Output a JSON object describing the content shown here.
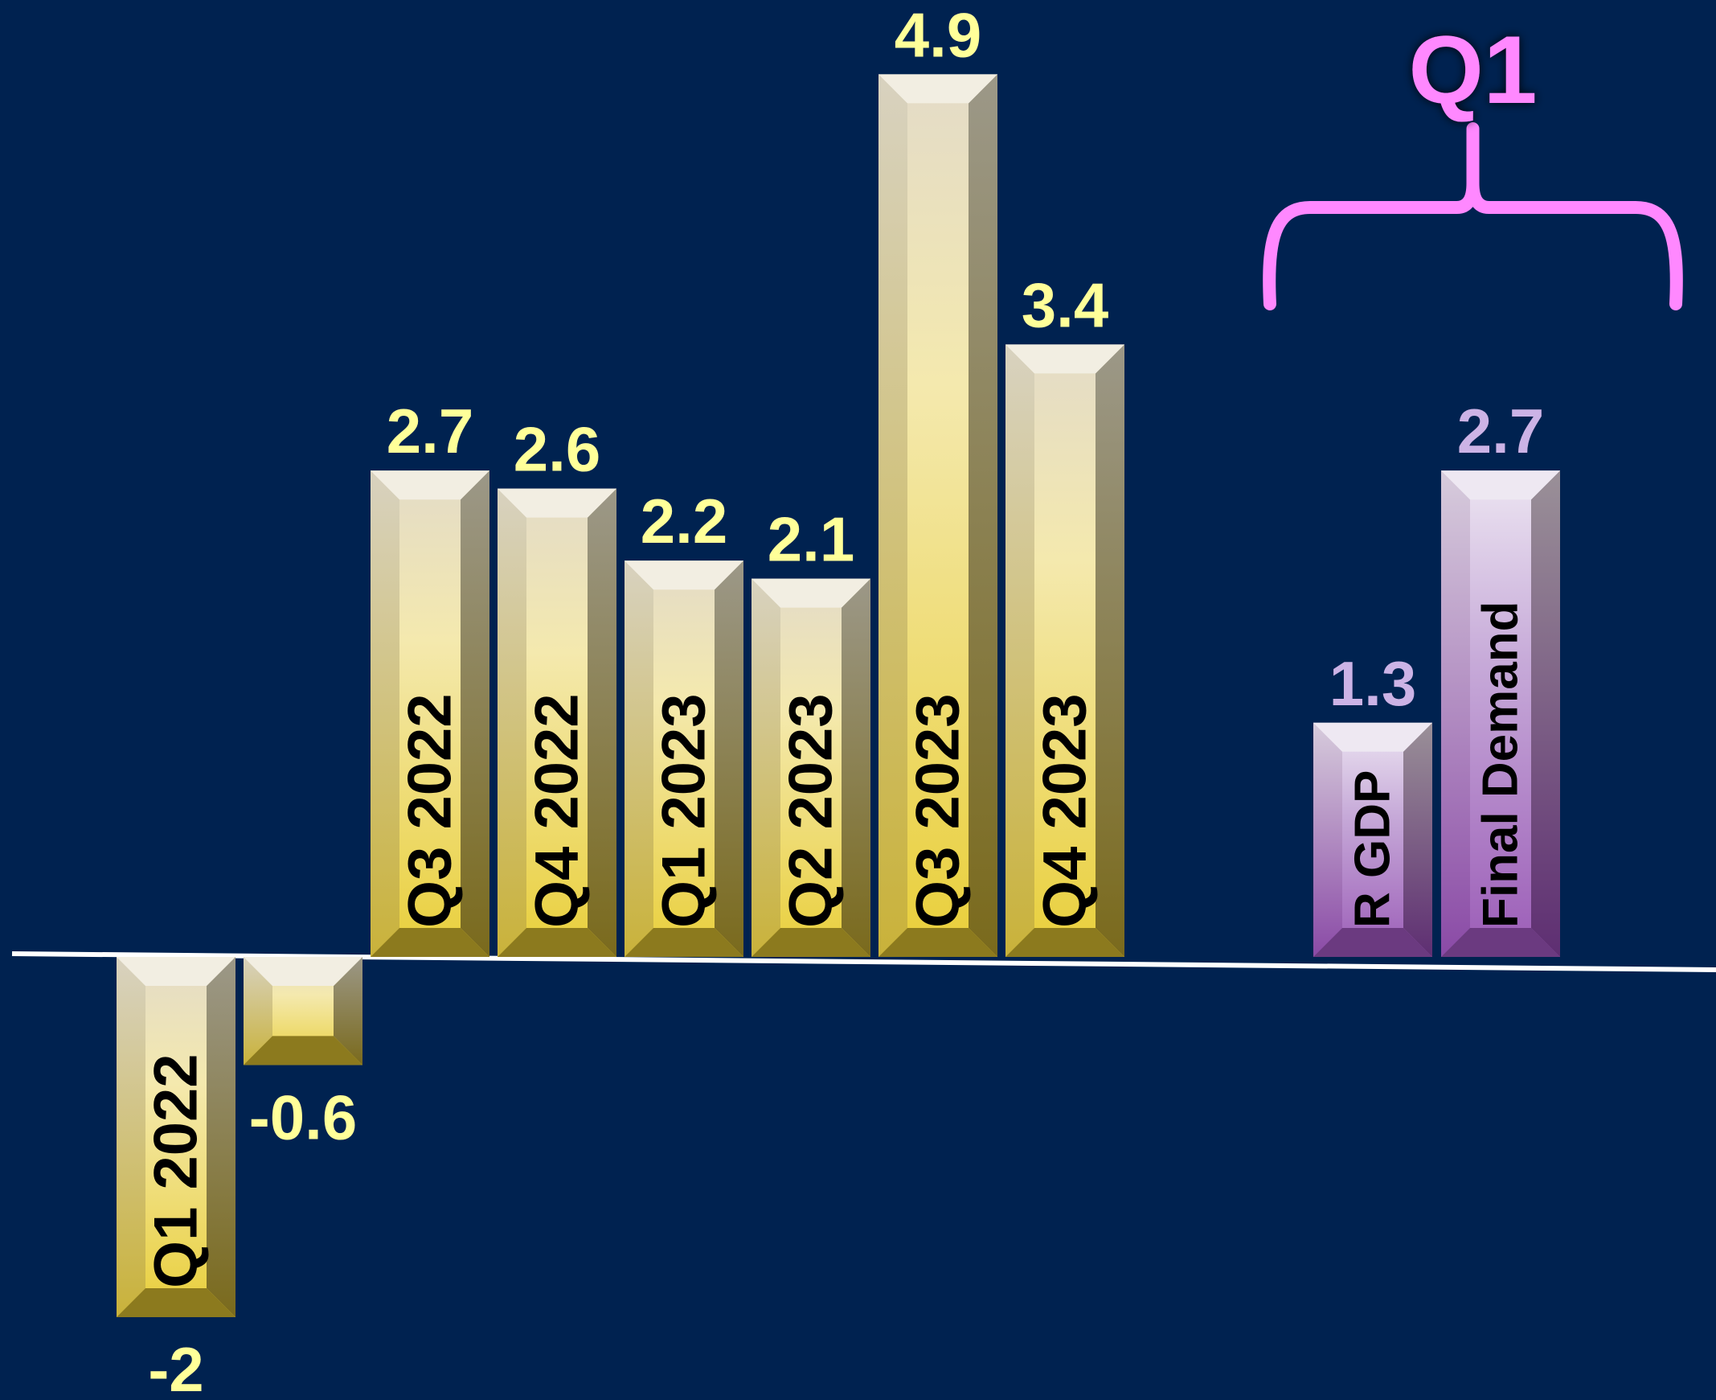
{
  "chart_data": [
    {
      "type": "bar",
      "categories": [
        "Q1 2022",
        "",
        "Q3 2022",
        "Q4 2022",
        "Q1 2023",
        "Q2 2023",
        "Q3 2023",
        "Q4 2023"
      ],
      "values": [
        -2,
        -0.6,
        2.7,
        2.6,
        2.2,
        2.1,
        4.9,
        3.4
      ],
      "value_labels": [
        "-2",
        "-0.6",
        "2.7",
        "2.6",
        "2.2",
        "2.1",
        "4.9",
        "3.4"
      ],
      "title": "",
      "xlabel": "",
      "ylabel": "",
      "grid": false,
      "color": "#E9CF3A",
      "label_color": "#FFFF99"
    },
    {
      "type": "bar",
      "group_label": "Q1",
      "categories": [
        "R GDP",
        "Final Demand"
      ],
      "values": [
        1.3,
        2.7
      ],
      "value_labels": [
        "1.3",
        "2.7"
      ],
      "grid": false,
      "color": "#B07CC6",
      "label_color": "#CCB3E6",
      "bracket_color": "#FF88FF"
    }
  ]
}
